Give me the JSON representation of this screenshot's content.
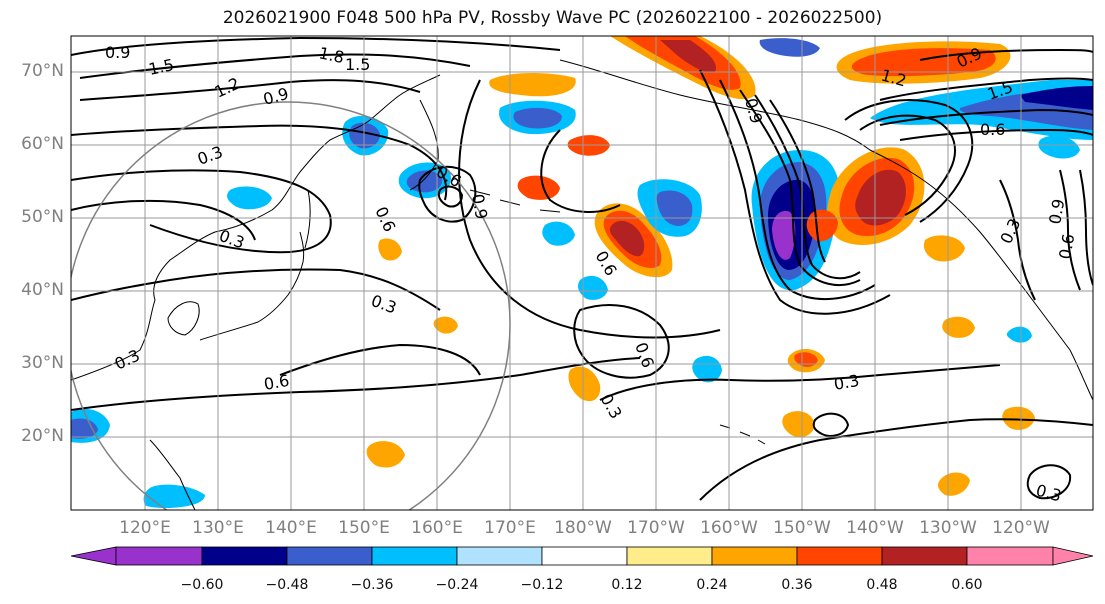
{
  "title": "2026021900 F048 500 hPa PV, Rossby Wave PC (2026022100 - 2026022500)",
  "lat_labels": [
    "70°N",
    "60°N",
    "50°N",
    "40°N",
    "30°N",
    "20°N"
  ],
  "lon_labels": [
    "120°E",
    "130°E",
    "140°E",
    "150°E",
    "160°E",
    "170°E",
    "180°W",
    "170°W",
    "160°W",
    "150°W",
    "140°W",
    "130°W",
    "120°W"
  ],
  "contour_labels": [
    "0.9",
    "1.5",
    "1.8",
    "1.5",
    "1.2",
    "0.9",
    "0.3",
    "0.3",
    "0.6",
    "0.9",
    "0.6",
    "0.3",
    "0.3",
    "0.6",
    "0.6",
    "0.3",
    "0.3",
    "0.6",
    "0.9",
    "1.2",
    "0.9",
    "1.5",
    "0.6",
    "0.3",
    "0.9",
    "0.6",
    "0.3"
  ],
  "colorbar": {
    "ticks": [
      "−0.60",
      "−0.48",
      "−0.36",
      "−0.24",
      "−0.12",
      "0.12",
      "0.24",
      "0.36",
      "0.48",
      "0.60"
    ],
    "colors": [
      "#9932cc",
      "#00008b",
      "#3a5fcd",
      "#00bfff",
      "#b0e2ff",
      "#ffffff",
      "#ffec8b",
      "#ffa500",
      "#ff4500",
      "#b22222",
      "#ff82ab"
    ]
  },
  "colors": {
    "neg1": "#b0e2ff",
    "neg2": "#00bfff",
    "neg3": "#3a5fcd",
    "neg4": "#00008b",
    "neg5": "#9932cc",
    "pos1": "#ffec8b",
    "pos2": "#ffa500",
    "pos3": "#ff4500",
    "pos4": "#b22222",
    "pos5": "#ff82ab"
  }
}
